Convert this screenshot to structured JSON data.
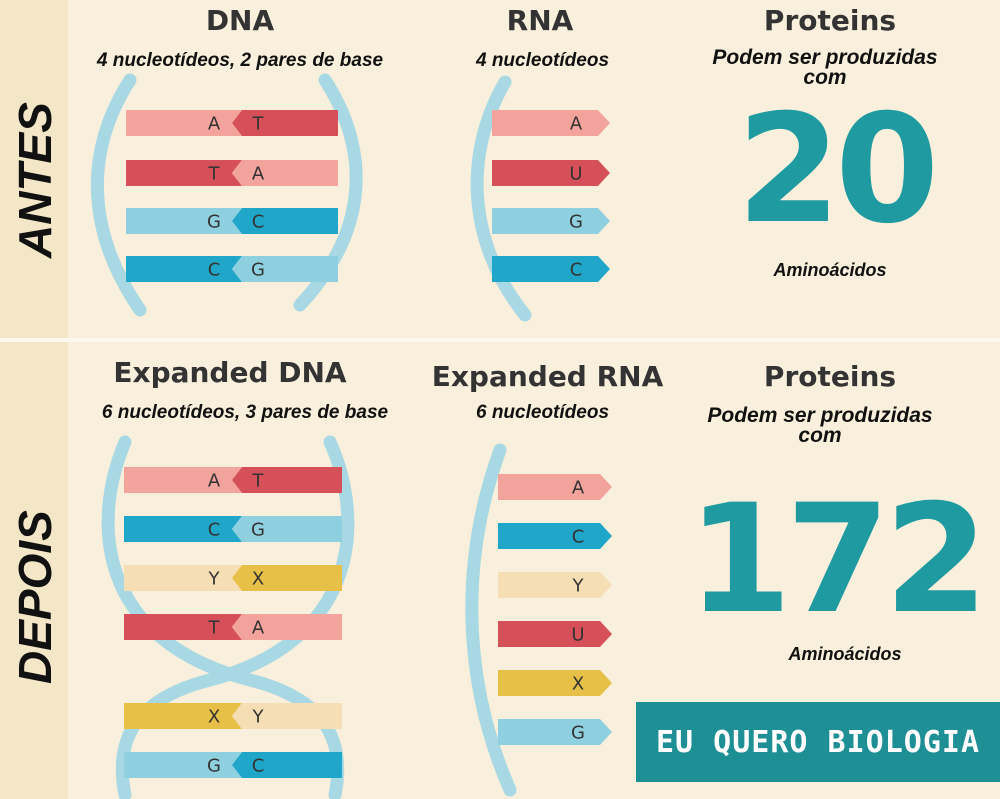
{
  "sections": {
    "before": {
      "side_label": "ANTES",
      "dna": {
        "title": "DNA",
        "subtitle": "4 nucleotídeos, 2 pares de base",
        "pairs": [
          [
            "A",
            "T"
          ],
          [
            "T",
            "A"
          ],
          [
            "G",
            "C"
          ],
          [
            "C",
            "G"
          ]
        ]
      },
      "rna": {
        "title": "RNA",
        "subtitle": "4 nucleotídeos",
        "bases": [
          "A",
          "U",
          "G",
          "C"
        ]
      },
      "proteins": {
        "title": "Proteins",
        "subtitle": "Podem ser produzidas\ncom",
        "count": "20",
        "unit": "Aminoácidos"
      }
    },
    "after": {
      "side_label": "DEPOIS",
      "dna": {
        "title": "Expanded DNA",
        "subtitle": "6 nucleotídeos, 3 pares de base",
        "pairs": [
          [
            "A",
            "T"
          ],
          [
            "C",
            "G"
          ],
          [
            "Y",
            "X"
          ],
          [
            "T",
            "A"
          ],
          [
            "X",
            "Y"
          ],
          [
            "G",
            "C"
          ]
        ]
      },
      "rna": {
        "title": "Expanded RNA",
        "subtitle": "6 nucleotídeos",
        "bases": [
          "A",
          "C",
          "Y",
          "U",
          "X",
          "G"
        ]
      },
      "proteins": {
        "title": "Proteins",
        "subtitle": "Podem ser produzidas\ncom",
        "count": "172",
        "unit": "Aminoácidos"
      }
    }
  },
  "brand": "EU QUERO BIOLOGIA",
  "colors": {
    "A": "#f2a39c",
    "T": "#d6505a",
    "G": "#8fd0e0",
    "C": "#1fa6c9",
    "U": "#d6505a",
    "X": "#e7c048",
    "Y": "#f5deb3",
    "backbone": "#a8d8e3",
    "accent": "#1e9aa0"
  }
}
